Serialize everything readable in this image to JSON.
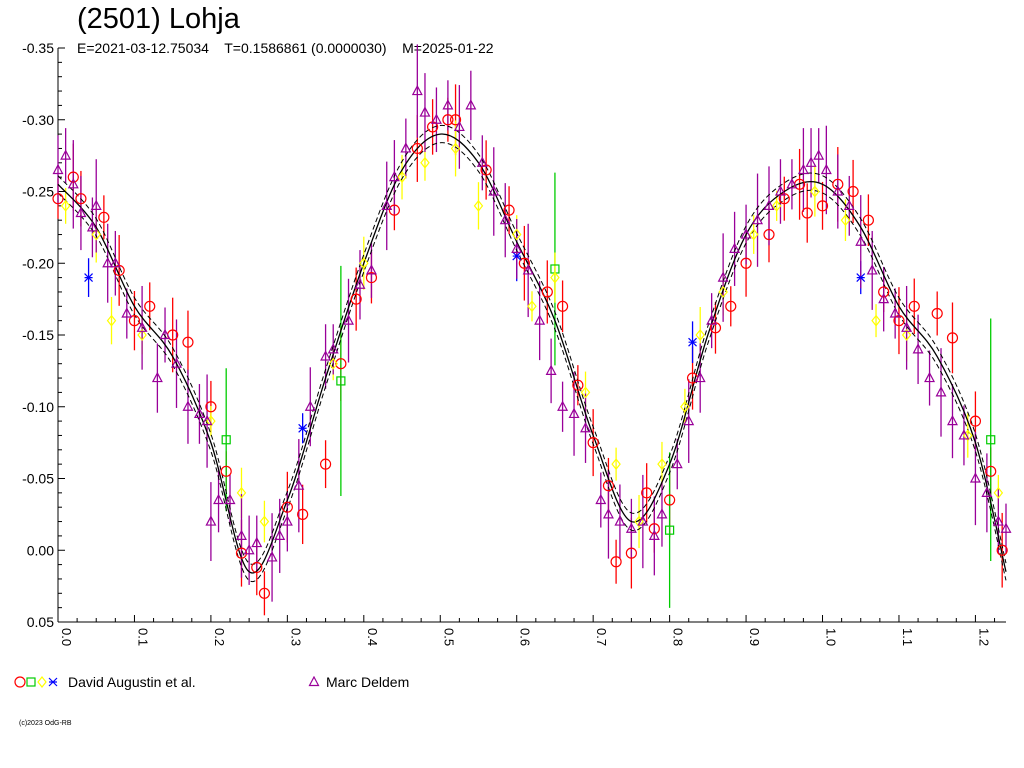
{
  "chart_data": {
    "type": "scatter",
    "title": "(2501) Lohja",
    "subtitle": "E=2021-03-12.75034    T=0.1586861 (0.0000030)    M=2025-01-22",
    "xlabel": "",
    "ylabel": "",
    "xlim": [
      0,
      1.24
    ],
    "ylim": [
      0.05,
      -0.35
    ],
    "y_inverted": true,
    "x_ticks": [
      "0.0",
      "0.1",
      "0.2",
      "0.3",
      "0.4",
      "0.5",
      "0.6",
      "0.7",
      "0.8",
      "0.9",
      "1.0",
      "1.1",
      "1.2"
    ],
    "y_ticks": [
      "-0.35",
      "-0.30",
      "-0.25",
      "-0.20",
      "-0.15",
      "-0.10",
      "-0.05",
      "0.00",
      "0.05"
    ],
    "grid": false,
    "legend_position": "bottom-left",
    "fit_curve": {
      "phase_values": [
        0.0,
        0.05,
        0.1,
        0.15,
        0.2,
        0.25,
        0.3,
        0.35,
        0.4,
        0.45,
        0.5,
        0.55,
        0.6,
        0.65,
        0.7,
        0.75,
        0.8,
        0.85,
        0.9,
        0.95,
        1.0,
        1.05,
        1.1,
        1.15,
        1.2,
        1.24
      ],
      "magnitudes": [
        -0.255,
        -0.225,
        -0.17,
        -0.135,
        -0.075,
        0.015,
        -0.035,
        -0.12,
        -0.2,
        -0.265,
        -0.29,
        -0.27,
        -0.215,
        -0.16,
        -0.08,
        -0.02,
        -0.06,
        -0.15,
        -0.22,
        -0.25,
        -0.255,
        -0.225,
        -0.17,
        -0.135,
        -0.075,
        0.015
      ]
    },
    "series": [
      {
        "name": "David Augustin et al.",
        "color": "#ff0000",
        "marker": "circle",
        "points": [
          [
            0.0,
            -0.245
          ],
          [
            0.02,
            -0.26
          ],
          [
            0.03,
            -0.245
          ],
          [
            0.06,
            -0.232
          ],
          [
            0.08,
            -0.195
          ],
          [
            0.1,
            -0.16
          ],
          [
            0.12,
            -0.17
          ],
          [
            0.15,
            -0.15
          ],
          [
            0.17,
            -0.145
          ],
          [
            0.2,
            -0.1
          ],
          [
            0.22,
            -0.055
          ],
          [
            0.24,
            0.002
          ],
          [
            0.26,
            0.012
          ],
          [
            0.27,
            0.03
          ],
          [
            0.3,
            -0.03
          ],
          [
            0.32,
            -0.025
          ],
          [
            0.35,
            -0.06
          ],
          [
            0.37,
            -0.13
          ],
          [
            0.39,
            -0.175
          ],
          [
            0.41,
            -0.19
          ],
          [
            0.44,
            -0.237
          ],
          [
            0.47,
            -0.28
          ],
          [
            0.49,
            -0.295
          ],
          [
            0.51,
            -0.3
          ],
          [
            0.52,
            -0.3
          ],
          [
            0.56,
            -0.265
          ],
          [
            0.59,
            -0.237
          ],
          [
            0.61,
            -0.2
          ],
          [
            0.64,
            -0.18
          ],
          [
            0.66,
            -0.17
          ],
          [
            0.68,
            -0.115
          ],
          [
            0.7,
            -0.075
          ],
          [
            0.72,
            -0.045
          ],
          [
            0.73,
            0.008
          ],
          [
            0.75,
            0.002
          ],
          [
            0.77,
            -0.04
          ],
          [
            0.78,
            -0.015
          ],
          [
            0.8,
            -0.035
          ],
          [
            0.83,
            -0.12
          ],
          [
            0.86,
            -0.155
          ],
          [
            0.88,
            -0.17
          ],
          [
            0.9,
            -0.2
          ],
          [
            0.93,
            -0.22
          ],
          [
            0.95,
            -0.245
          ],
          [
            0.97,
            -0.255
          ],
          [
            0.98,
            -0.235
          ],
          [
            1.0,
            -0.24
          ],
          [
            1.02,
            -0.255
          ],
          [
            1.04,
            -0.25
          ],
          [
            1.06,
            -0.23
          ],
          [
            1.08,
            -0.18
          ],
          [
            1.1,
            -0.16
          ],
          [
            1.12,
            -0.17
          ],
          [
            1.15,
            -0.165
          ],
          [
            1.17,
            -0.148
          ],
          [
            1.2,
            -0.09
          ],
          [
            1.22,
            -0.055
          ],
          [
            1.235,
            0.0
          ]
        ]
      },
      {
        "name": "",
        "color": "#00cc00",
        "marker": "square",
        "points": [
          [
            0.22,
            -0.077
          ],
          [
            0.37,
            -0.118
          ],
          [
            0.65,
            -0.196
          ],
          [
            0.8,
            -0.014
          ],
          [
            1.22,
            -0.077
          ]
        ]
      },
      {
        "name": "",
        "color": "#ffff00",
        "marker": "diamond",
        "points": [
          [
            0.01,
            -0.24
          ],
          [
            0.05,
            -0.22
          ],
          [
            0.07,
            -0.16
          ],
          [
            0.11,
            -0.15
          ],
          [
            0.2,
            -0.09
          ],
          [
            0.24,
            -0.04
          ],
          [
            0.27,
            -0.02
          ],
          [
            0.36,
            -0.13
          ],
          [
            0.4,
            -0.2
          ],
          [
            0.45,
            -0.26
          ],
          [
            0.48,
            -0.27
          ],
          [
            0.52,
            -0.28
          ],
          [
            0.55,
            -0.24
          ],
          [
            0.6,
            -0.22
          ],
          [
            0.62,
            -0.17
          ],
          [
            0.65,
            -0.19
          ],
          [
            0.69,
            -0.11
          ],
          [
            0.73,
            -0.06
          ],
          [
            0.76,
            -0.02
          ],
          [
            0.79,
            -0.06
          ],
          [
            0.82,
            -0.1
          ],
          [
            0.84,
            -0.15
          ],
          [
            0.87,
            -0.18
          ],
          [
            0.91,
            -0.22
          ],
          [
            0.94,
            -0.24
          ],
          [
            0.99,
            -0.25
          ],
          [
            1.03,
            -0.23
          ],
          [
            1.07,
            -0.16
          ],
          [
            1.11,
            -0.15
          ],
          [
            1.19,
            -0.08
          ],
          [
            1.23,
            -0.04
          ]
        ]
      },
      {
        "name": "",
        "color": "#0000ff",
        "marker": "star",
        "points": [
          [
            0.04,
            -0.19
          ],
          [
            0.32,
            -0.085
          ],
          [
            0.6,
            -0.205
          ],
          [
            0.83,
            -0.145
          ],
          [
            1.05,
            -0.19
          ]
        ]
      },
      {
        "name": "Marc Deldem",
        "color": "#990099",
        "marker": "triangle",
        "points": [
          [
            0.0,
            -0.265
          ],
          [
            0.01,
            -0.275
          ],
          [
            0.02,
            -0.255
          ],
          [
            0.03,
            -0.235
          ],
          [
            0.045,
            -0.225
          ],
          [
            0.05,
            -0.24
          ],
          [
            0.065,
            -0.2
          ],
          [
            0.075,
            -0.2
          ],
          [
            0.09,
            -0.165
          ],
          [
            0.11,
            -0.155
          ],
          [
            0.13,
            -0.12
          ],
          [
            0.14,
            -0.15
          ],
          [
            0.155,
            -0.13
          ],
          [
            0.17,
            -0.1
          ],
          [
            0.185,
            -0.095
          ],
          [
            0.195,
            -0.09
          ],
          [
            0.2,
            -0.02
          ],
          [
            0.21,
            -0.035
          ],
          [
            0.225,
            -0.035
          ],
          [
            0.24,
            -0.01
          ],
          [
            0.25,
            0.0
          ],
          [
            0.26,
            -0.005
          ],
          [
            0.28,
            0.005
          ],
          [
            0.29,
            -0.01
          ],
          [
            0.3,
            -0.02
          ],
          [
            0.315,
            -0.045
          ],
          [
            0.33,
            -0.1
          ],
          [
            0.35,
            -0.135
          ],
          [
            0.36,
            -0.14
          ],
          [
            0.38,
            -0.16
          ],
          [
            0.395,
            -0.185
          ],
          [
            0.41,
            -0.195
          ],
          [
            0.43,
            -0.24
          ],
          [
            0.44,
            -0.26
          ],
          [
            0.455,
            -0.28
          ],
          [
            0.47,
            -0.32
          ],
          [
            0.48,
            -0.305
          ],
          [
            0.495,
            -0.3
          ],
          [
            0.51,
            -0.31
          ],
          [
            0.525,
            -0.295
          ],
          [
            0.54,
            -0.31
          ],
          [
            0.555,
            -0.27
          ],
          [
            0.57,
            -0.25
          ],
          [
            0.585,
            -0.23
          ],
          [
            0.6,
            -0.21
          ],
          [
            0.615,
            -0.195
          ],
          [
            0.63,
            -0.16
          ],
          [
            0.645,
            -0.125
          ],
          [
            0.66,
            -0.1
          ],
          [
            0.675,
            -0.095
          ],
          [
            0.69,
            -0.085
          ],
          [
            0.71,
            -0.035
          ],
          [
            0.72,
            -0.025
          ],
          [
            0.735,
            -0.02
          ],
          [
            0.75,
            -0.015
          ],
          [
            0.765,
            -0.02
          ],
          [
            0.78,
            -0.01
          ],
          [
            0.79,
            -0.025
          ],
          [
            0.81,
            -0.06
          ],
          [
            0.825,
            -0.09
          ],
          [
            0.84,
            -0.12
          ],
          [
            0.855,
            -0.16
          ],
          [
            0.87,
            -0.19
          ],
          [
            0.885,
            -0.21
          ],
          [
            0.9,
            -0.22
          ],
          [
            0.915,
            -0.23
          ],
          [
            0.93,
            -0.24
          ],
          [
            0.945,
            -0.25
          ],
          [
            0.96,
            -0.255
          ],
          [
            0.975,
            -0.265
          ],
          [
            0.985,
            -0.27
          ],
          [
            0.995,
            -0.275
          ],
          [
            1.005,
            -0.265
          ],
          [
            1.02,
            -0.25
          ],
          [
            1.035,
            -0.24
          ],
          [
            1.05,
            -0.215
          ],
          [
            1.065,
            -0.195
          ],
          [
            1.08,
            -0.175
          ],
          [
            1.095,
            -0.165
          ],
          [
            1.11,
            -0.155
          ],
          [
            1.125,
            -0.14
          ],
          [
            1.14,
            -0.12
          ],
          [
            1.155,
            -0.11
          ],
          [
            1.17,
            -0.09
          ],
          [
            1.185,
            -0.08
          ],
          [
            1.2,
            -0.05
          ],
          [
            1.215,
            -0.04
          ],
          [
            1.23,
            -0.02
          ],
          [
            1.24,
            -0.015
          ]
        ]
      }
    ]
  },
  "legend": {
    "entries": [
      {
        "label": "David Augustin et al.",
        "markers": [
          {
            "shape": "circle",
            "color": "#ff0000"
          },
          {
            "shape": "square",
            "color": "#00cc00"
          },
          {
            "shape": "diamond",
            "color": "#ffff00"
          },
          {
            "shape": "star",
            "color": "#0000ff"
          }
        ]
      },
      {
        "label": "Marc Deldem",
        "markers": [
          {
            "shape": "triangle",
            "color": "#990099"
          }
        ]
      }
    ]
  },
  "copyright": "(c)2023 OdG-RB"
}
